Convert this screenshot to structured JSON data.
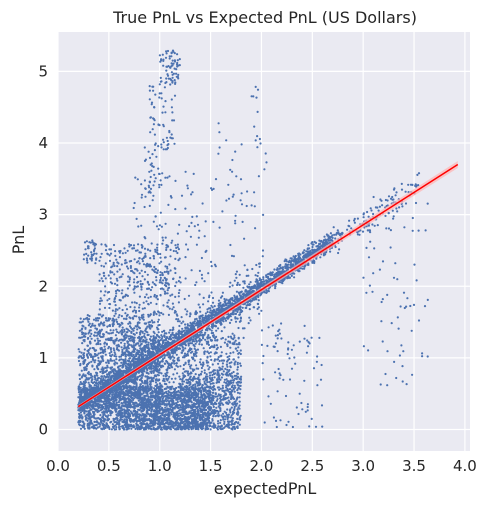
{
  "chart_data": {
    "type": "scatter",
    "title": "True PnL vs Expected PnL (US Dollars)",
    "xlabel": "expectedPnL",
    "ylabel": "PnL",
    "xlim": [
      0.0,
      4.05
    ],
    "ylim": [
      -0.3,
      5.55
    ],
    "xticks": [
      0.0,
      0.5,
      1.0,
      1.5,
      2.0,
      2.5,
      3.0,
      3.5,
      4.0
    ],
    "xtick_labels": [
      "0.0",
      "0.5",
      "1.0",
      "1.5",
      "2.0",
      "2.5",
      "3.0",
      "3.5",
      "4.0"
    ],
    "yticks": [
      0,
      1,
      2,
      3,
      4,
      5
    ],
    "ytick_labels": [
      "0",
      "1",
      "2",
      "3",
      "4",
      "5"
    ],
    "grid": true,
    "background": "#eaeaf2",
    "grid_color": "#ffffff",
    "point_color": "#4c72b0",
    "line_color": "#ff0000",
    "ci_color": "#ffb3b3",
    "regression_line": {
      "x": [
        0.2,
        3.93
      ],
      "y": [
        0.32,
        3.7
      ]
    },
    "clusters": [
      {
        "x": [
          0.2,
          1.5
        ],
        "y": [
          0.0,
          0.6
        ],
        "n": 1800,
        "mode": "box"
      },
      {
        "x": [
          0.2,
          1.0
        ],
        "y": [
          0.3,
          1.6
        ],
        "n": 1000,
        "mode": "box"
      },
      {
        "x": [
          0.2,
          2.0
        ],
        "y": [
          0.0,
          0.0
        ],
        "n": 700,
        "mode": "band",
        "spread": 0.28,
        "slope": 0.92,
        "intercept": 0.15
      },
      {
        "x": [
          0.2,
          2.7
        ],
        "y": [
          0.0,
          0.0
        ],
        "n": 2500,
        "mode": "band",
        "spread": 0.09,
        "slope": 0.92,
        "intercept": 0.15
      },
      {
        "x": [
          0.6,
          1.8
        ],
        "y": [
          0.0,
          1.3
        ],
        "n": 1200,
        "mode": "box"
      },
      {
        "x": [
          0.4,
          1.2
        ],
        "y": [
          1.6,
          2.6
        ],
        "n": 350,
        "mode": "box"
      },
      {
        "x": [
          1.0,
          1.2
        ],
        "y": [
          4.8,
          5.3
        ],
        "n": 70,
        "mode": "box"
      },
      {
        "x": [
          0.9,
          1.15
        ],
        "y": [
          3.9,
          4.8
        ],
        "n": 60,
        "mode": "box"
      },
      {
        "x": [
          0.85,
          1.0
        ],
        "y": [
          3.2,
          4.0
        ],
        "n": 30,
        "mode": "box"
      },
      {
        "x": [
          0.25,
          0.4
        ],
        "y": [
          2.3,
          2.65
        ],
        "n": 40,
        "mode": "box"
      },
      {
        "x": [
          2.7,
          3.55
        ],
        "y": [
          0.0,
          0.0
        ],
        "n": 130,
        "mode": "band",
        "spread": 0.15,
        "slope": 0.92,
        "intercept": 0.15
      },
      {
        "x": [
          3.0,
          3.65
        ],
        "y": [
          0.5,
          3.2
        ],
        "n": 70,
        "mode": "box"
      },
      {
        "x": [
          1.5,
          2.05
        ],
        "y": [
          2.2,
          4.3
        ],
        "n": 60,
        "mode": "box"
      },
      {
        "x": [
          1.9,
          2.0
        ],
        "y": [
          4.0,
          4.8
        ],
        "n": 8,
        "mode": "box"
      },
      {
        "x": [
          2.0,
          2.6
        ],
        "y": [
          0.0,
          1.5
        ],
        "n": 80,
        "mode": "box"
      },
      {
        "x": [
          0.7,
          1.5
        ],
        "y": [
          2.0,
          3.6
        ],
        "n": 120,
        "mode": "box"
      },
      {
        "x": [
          1.2,
          1.8
        ],
        "y": [
          0.0,
          0.8
        ],
        "n": 400,
        "mode": "box"
      }
    ]
  }
}
